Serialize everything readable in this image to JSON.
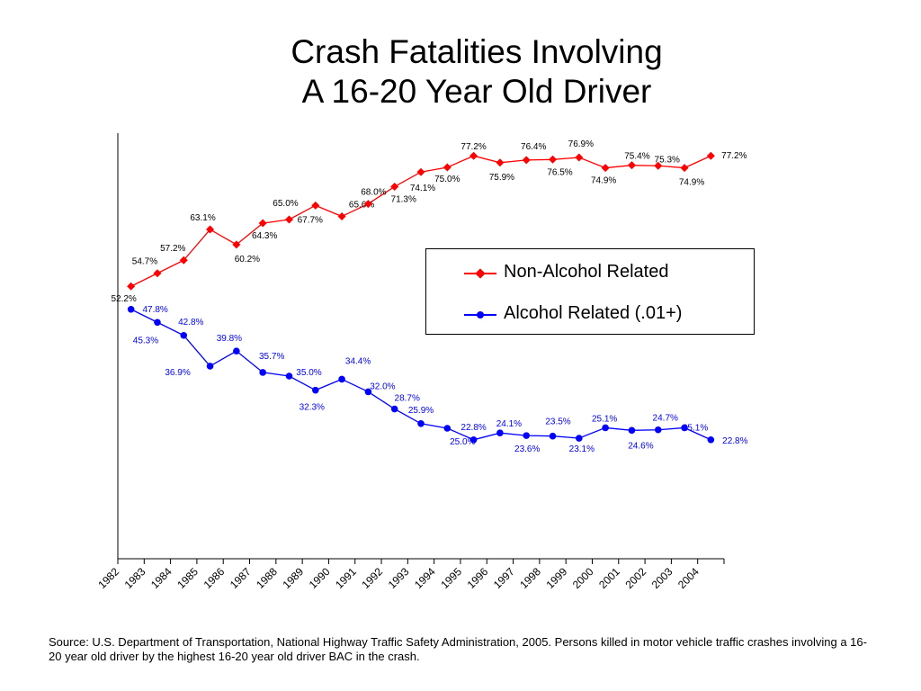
{
  "title_line1": "Crash Fatalities Involving",
  "title_line2": "A 16-20 Year Old Driver",
  "source": "Source: U.S. Department of Transportation, National Highway Traffic Safety Administration, 2005. Persons killed in motor vehicle traffic crashes involving a 16-20 year old driver by the highest 16-20 year old driver BAC in the crash.",
  "colors": {
    "non_alcohol": "#ff0000",
    "alcohol": "#0000ff"
  },
  "chart_data": {
    "type": "line",
    "title": "Crash Fatalities Involving A 16-20 Year Old Driver",
    "x": [
      "1982",
      "1983",
      "1984",
      "1985",
      "1986",
      "1987",
      "1988",
      "1989",
      "1990",
      "1991",
      "1992",
      "1993",
      "1994",
      "1995",
      "1996",
      "1997",
      "1998",
      "1999",
      "2000",
      "2001",
      "2002",
      "2003",
      "2004"
    ],
    "ylim": [
      0,
      80
    ],
    "grid": false,
    "legend_position": "right-center",
    "series": [
      {
        "name": "Non-Alcohol Related",
        "marker": "diamond",
        "color": "#ff0000",
        "values": [
          52.2,
          54.7,
          57.2,
          63.1,
          60.2,
          64.3,
          65.0,
          67.7,
          65.6,
          68.0,
          71.3,
          74.1,
          75.0,
          77.2,
          75.9,
          76.4,
          76.5,
          76.9,
          74.9,
          75.4,
          75.3,
          74.9,
          77.2
        ],
        "labels": [
          "52.2%",
          "54.7%",
          "57.2%",
          "63.1%",
          "60.2%",
          "64.3%",
          "65.0%",
          "67.7%",
          "65.6%",
          "68.0%",
          "71.3%",
          "74.1%",
          "75.0%",
          "77.2%",
          "75.9%",
          "76.4%",
          "76.5%",
          "76.9%",
          "74.9%",
          "75.4%",
          "75.3%",
          "74.9%",
          "77.2%"
        ]
      },
      {
        "name": "Alcohol Related (.01+)",
        "marker": "circle",
        "color": "#0000ff",
        "values": [
          47.8,
          45.3,
          42.8,
          36.9,
          39.8,
          35.7,
          35.0,
          32.3,
          34.4,
          32.0,
          28.7,
          25.9,
          25.0,
          22.8,
          24.1,
          23.6,
          23.5,
          23.1,
          25.1,
          24.6,
          24.7,
          25.1,
          22.8
        ],
        "labels": [
          "47.8%",
          "45.3%",
          "42.8%",
          "36.9%",
          "39.8%",
          "35.7%",
          "35.0%",
          "32.3%",
          "34.4%",
          "32.0%",
          "28.7%",
          "25.9%",
          "25.0%",
          "22.8%",
          "24.1%",
          "23.6%",
          "23.5%",
          "23.1%",
          "25.1%",
          "24.6%",
          "24.7%",
          "25.1%",
          "22.8%"
        ]
      }
    ]
  }
}
